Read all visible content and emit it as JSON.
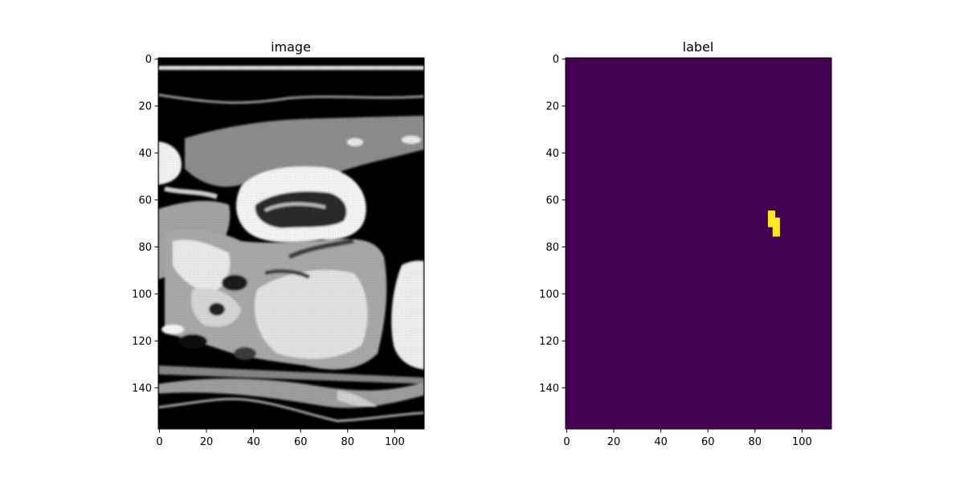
{
  "colors": {
    "background": "#ffffff",
    "axis": "#000000",
    "label_background": "#440154",
    "label_foreground": "#fde725"
  },
  "chart_data": [
    {
      "type": "heatmap",
      "title": "image",
      "xlabel": "",
      "ylabel": "",
      "colormap": "gray",
      "xlim": [
        -0.5,
        112.5
      ],
      "ylim": [
        157.5,
        -0.5
      ],
      "xticks": [
        0,
        20,
        40,
        60,
        80,
        100
      ],
      "yticks": [
        0,
        20,
        40,
        60,
        80,
        100,
        120,
        140
      ],
      "grid": false,
      "legend": "none",
      "description_of_content": ""
    },
    {
      "type": "heatmap",
      "title": "label",
      "xlabel": "",
      "ylabel": "",
      "colormap": "viridis",
      "xlim": [
        -0.5,
        112.5
      ],
      "ylim": [
        157.5,
        -0.5
      ],
      "xticks": [
        0,
        20,
        40,
        60,
        80,
        100
      ],
      "yticks": [
        0,
        20,
        40,
        60,
        80,
        100,
        120,
        140
      ],
      "grid": false,
      "legend": "none",
      "background_value": 0,
      "foreground_value": 1,
      "foreground_cells": [
        [
          86,
          65
        ],
        [
          86,
          66
        ],
        [
          86,
          67
        ],
        [
          86,
          68
        ],
        [
          86,
          69
        ],
        [
          86,
          70
        ],
        [
          86,
          71
        ],
        [
          87,
          65
        ],
        [
          87,
          66
        ],
        [
          87,
          67
        ],
        [
          87,
          68
        ],
        [
          87,
          69
        ],
        [
          87,
          70
        ],
        [
          87,
          71
        ],
        [
          88,
          65
        ],
        [
          88,
          66
        ],
        [
          88,
          67
        ],
        [
          88,
          68
        ],
        [
          88,
          69
        ],
        [
          88,
          70
        ],
        [
          88,
          71
        ],
        [
          88,
          72
        ],
        [
          88,
          73
        ],
        [
          88,
          74
        ],
        [
          88,
          75
        ],
        [
          89,
          68
        ],
        [
          89,
          69
        ],
        [
          89,
          70
        ],
        [
          89,
          71
        ],
        [
          89,
          72
        ],
        [
          89,
          73
        ],
        [
          89,
          74
        ],
        [
          89,
          75
        ],
        [
          90,
          68
        ],
        [
          90,
          69
        ],
        [
          90,
          70
        ],
        [
          90,
          71
        ],
        [
          90,
          72
        ],
        [
          90,
          73
        ],
        [
          90,
          74
        ],
        [
          90,
          75
        ]
      ]
    }
  ]
}
